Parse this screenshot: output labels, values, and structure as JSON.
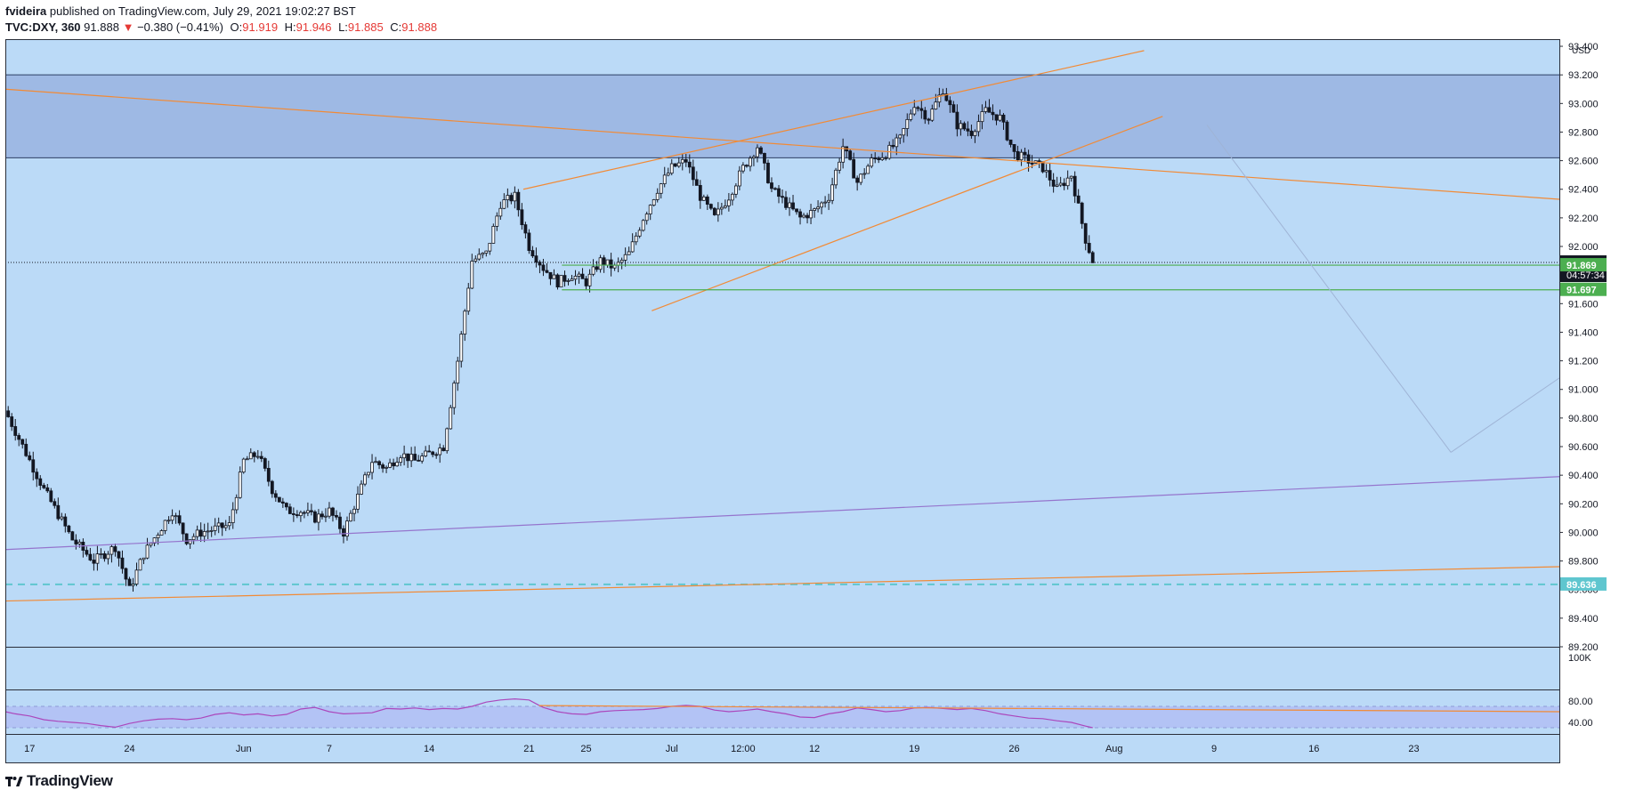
{
  "header": {
    "author": "fvideira",
    "published_text": "published on TradingView.com, July 29, 2021 19:02:27 BST",
    "symbol": "TVC:DXY, 360",
    "last": "91.888",
    "change_arrow": "▼",
    "change": "−0.380 (−0.41%)",
    "o_label": "O:",
    "o": "91.919",
    "h_label": "H:",
    "h": "91.946",
    "l_label": "L:",
    "l": "91.885",
    "c_label": "C:",
    "c": "91.888"
  },
  "footer": {
    "brand": "TradingView"
  },
  "colors": {
    "pane_bg": "#bbdaf7",
    "zone": "#9eb9e4",
    "orange": "#f28a35",
    "green": "#4caf50",
    "purple": "#9575cd",
    "cyan": "#5fc6cf",
    "rsi_line": "#ab47bc",
    "rsi_band": "#b3c3f5",
    "candle": "#131722"
  },
  "chart_data": {
    "type": "candlestick",
    "title": "TVC:DXY, 360",
    "ylabel": "USD",
    "ylim": [
      89.2,
      93.45
    ],
    "y_ticks": [
      "93.400",
      "93.200",
      "93.000",
      "92.800",
      "92.600",
      "92.400",
      "92.200",
      "92.000",
      "91.800",
      "91.600",
      "91.400",
      "91.200",
      "91.000",
      "90.800",
      "90.600",
      "90.400",
      "90.200",
      "90.000",
      "89.800",
      "89.600",
      "89.400",
      "89.200"
    ],
    "x_ticks": [
      "17",
      "24",
      "Jun",
      "7",
      "14",
      "21",
      "25",
      "Jul",
      "12:00",
      "12",
      "19",
      "26",
      "Aug",
      "9",
      "16",
      "23"
    ],
    "x_tick_days": [
      0,
      7,
      15,
      21,
      28,
      35,
      39,
      45,
      50,
      55,
      62,
      69,
      76,
      83,
      90,
      97
    ],
    "x_range_days": [
      -1.7,
      107.2
    ],
    "x_reference": "day 0 = May 17, 2021",
    "price_labels": [
      {
        "value": 91.888,
        "text": "91.888",
        "sub": "04:57:34",
        "color": "#131722"
      },
      {
        "value": 91.869,
        "text": "91.869",
        "color": "#4caf50"
      },
      {
        "value": 91.697,
        "text": "91.697",
        "color": "#4caf50"
      },
      {
        "value": 89.636,
        "text": "89.636",
        "color": "#5fc6cf"
      }
    ],
    "zone": {
      "from": 92.62,
      "to": 93.2
    },
    "trendlines": [
      {
        "color": "orange",
        "x1": -1.7,
        "y1": 93.1,
        "x2": 107.2,
        "y2": 92.33
      },
      {
        "color": "orange",
        "x1": 34.6,
        "y1": 92.4,
        "x2": 78.1,
        "y2": 93.37
      },
      {
        "color": "orange",
        "x1": 43.6,
        "y1": 91.55,
        "x2": 79.4,
        "y2": 92.91
      },
      {
        "color": "orange",
        "x1": -1.7,
        "y1": 89.52,
        "x2": 107.2,
        "y2": 89.76
      },
      {
        "color": "purple",
        "x1": -1.7,
        "y1": 89.88,
        "x2": 107.2,
        "y2": 90.39
      },
      {
        "color": "green",
        "x1": 37.3,
        "y1": 91.869,
        "x2": 107.2,
        "y2": 91.869
      },
      {
        "color": "green",
        "x1": 37.3,
        "y1": 91.697,
        "x2": 107.2,
        "y2": 91.697
      },
      {
        "color": "faint",
        "x1": 82.5,
        "y1": 92.85,
        "x2": 99.6,
        "y2": 90.56
      },
      {
        "color": "faint",
        "x1": 99.6,
        "y1": 90.56,
        "x2": 107.2,
        "y2": 91.08
      }
    ],
    "dashed_level": 89.636,
    "last_price": 91.888,
    "vol_axis": "100K",
    "rsi": {
      "ylim": [
        20,
        100
      ],
      "ticks": [
        "80.00",
        "40.00"
      ],
      "upper": 70,
      "lower": 30,
      "trend": {
        "x1": 35.7,
        "y1": 71.5,
        "x2": 107.2,
        "y2": 60
      },
      "points": [
        [
          -1.7,
          60
        ],
        [
          -1,
          56
        ],
        [
          0,
          52
        ],
        [
          1,
          45
        ],
        [
          2,
          42
        ],
        [
          3,
          40
        ],
        [
          4,
          38
        ],
        [
          5,
          34
        ],
        [
          6,
          31
        ],
        [
          7,
          38
        ],
        [
          8,
          43
        ],
        [
          9,
          46
        ],
        [
          10,
          47
        ],
        [
          11,
          45
        ],
        [
          12,
          48
        ],
        [
          13,
          55
        ],
        [
          14,
          58
        ],
        [
          15,
          54
        ],
        [
          16,
          56
        ],
        [
          17,
          52
        ],
        [
          18,
          55
        ],
        [
          19,
          65
        ],
        [
          20,
          68
        ],
        [
          21,
          60
        ],
        [
          22,
          56
        ],
        [
          23,
          57
        ],
        [
          24,
          58
        ],
        [
          25,
          66
        ],
        [
          26,
          65
        ],
        [
          27,
          67
        ],
        [
          28,
          64
        ],
        [
          29,
          66
        ],
        [
          30,
          65
        ],
        [
          31,
          70
        ],
        [
          32,
          78
        ],
        [
          33,
          82
        ],
        [
          34,
          84
        ],
        [
          35,
          82
        ],
        [
          35.7,
          72
        ],
        [
          36,
          68
        ],
        [
          37,
          60
        ],
        [
          38,
          56
        ],
        [
          39,
          55
        ],
        [
          40,
          60
        ],
        [
          41,
          62
        ],
        [
          42,
          63
        ],
        [
          43,
          64
        ],
        [
          44,
          66
        ],
        [
          45,
          70
        ],
        [
          46,
          72
        ],
        [
          47,
          70
        ],
        [
          48,
          63
        ],
        [
          49,
          60
        ],
        [
          50,
          62
        ],
        [
          51,
          65
        ],
        [
          52,
          60
        ],
        [
          53,
          56
        ],
        [
          54,
          50
        ],
        [
          55,
          49
        ],
        [
          56,
          56
        ],
        [
          57,
          60
        ],
        [
          58,
          67
        ],
        [
          59,
          64
        ],
        [
          60,
          60
        ],
        [
          61,
          62
        ],
        [
          62,
          67
        ],
        [
          63,
          68
        ],
        [
          64,
          66
        ],
        [
          65,
          64
        ],
        [
          66,
          66
        ],
        [
          67,
          62
        ],
        [
          68,
          56
        ],
        [
          69,
          52
        ],
        [
          70,
          48
        ],
        [
          71,
          47
        ],
        [
          72,
          43
        ],
        [
          73,
          40
        ],
        [
          74,
          33
        ],
        [
          74.5,
          30
        ]
      ]
    }
  }
}
